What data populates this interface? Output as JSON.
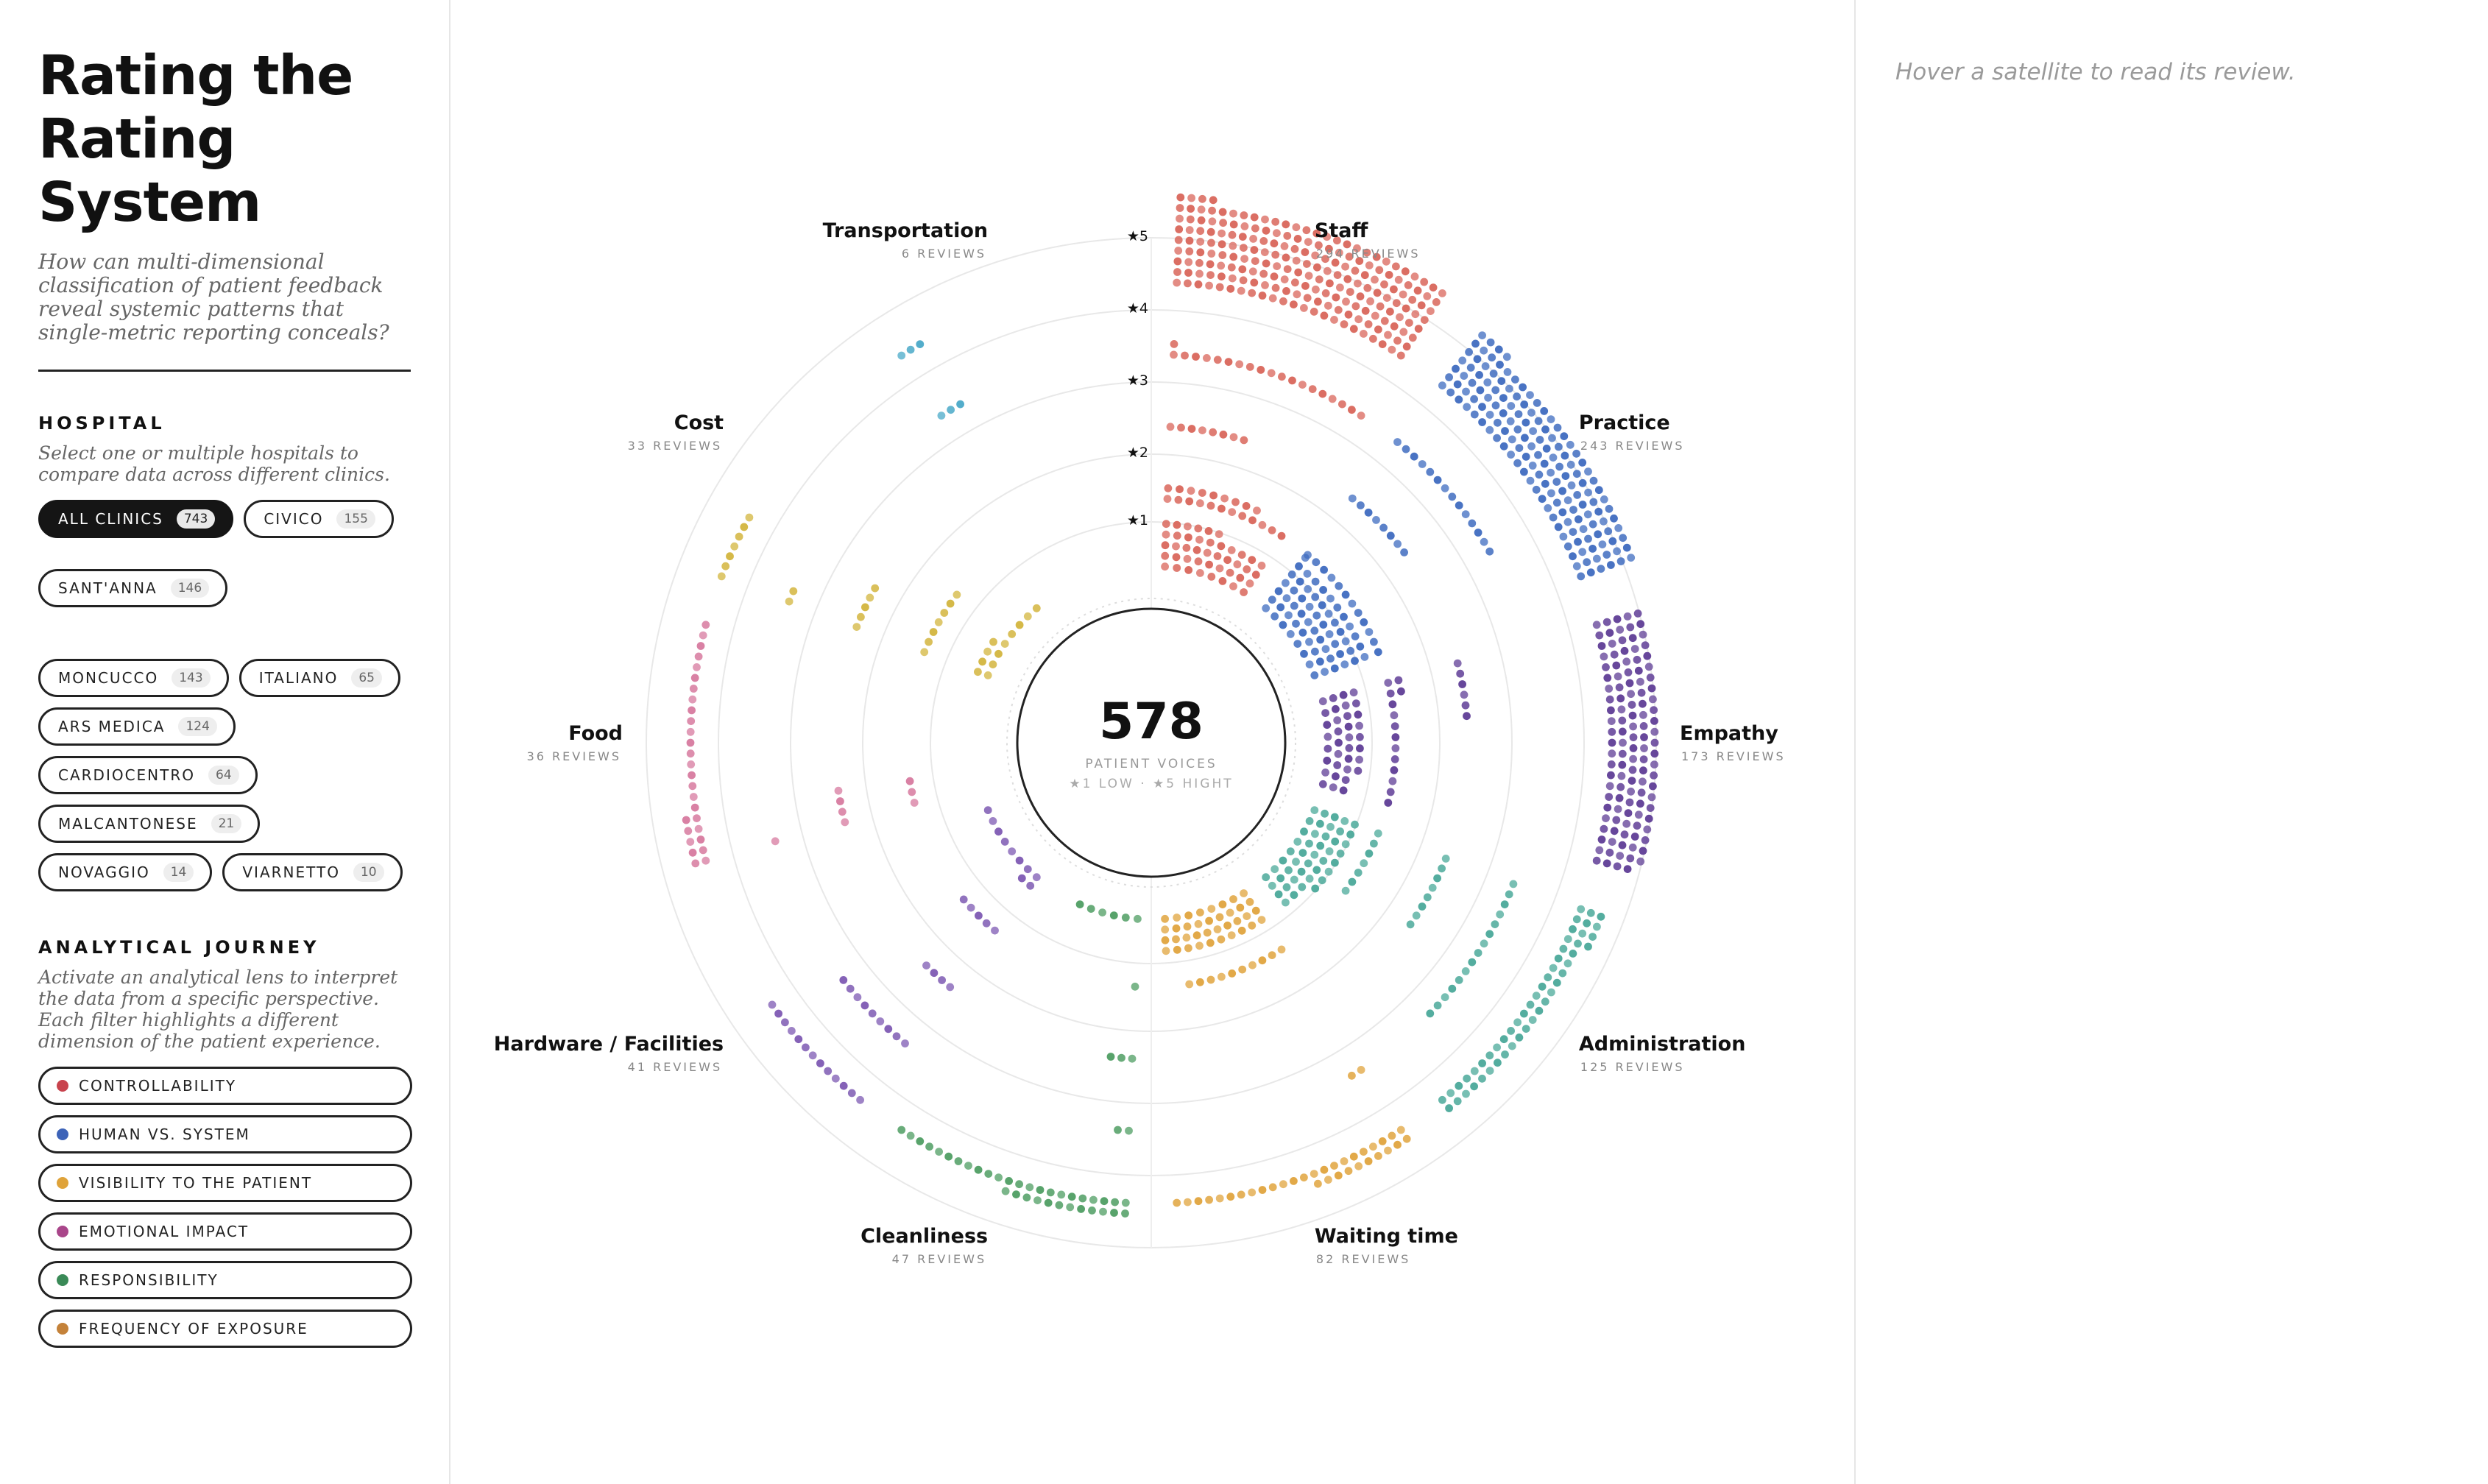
{
  "header": {
    "title_lines": [
      "Rating the",
      "Rating",
      "System"
    ],
    "subtitle": "How can multi-dimensional classification of patient feedback reveal systemic patterns that single-metric reporting conceals?"
  },
  "hospital": {
    "title": "HOSPITAL",
    "description": "Select one or multiple hospitals to compare data across different clinics.",
    "clinics": [
      {
        "name": "ALL CLINICS",
        "count": "743",
        "active": true
      },
      {
        "name": "CIVICO",
        "count": "155",
        "active": false
      },
      {
        "name": "SANT'ANNA",
        "count": "146",
        "active": false
      },
      {
        "name": "MONCUCCO",
        "count": "143",
        "active": false
      },
      {
        "name": "ITALIANO",
        "count": "65",
        "active": false
      },
      {
        "name": "ARS MEDICA",
        "count": "124",
        "active": false
      },
      {
        "name": "CARDIOCENTRO",
        "count": "64",
        "active": false
      },
      {
        "name": "MALCANTONESE",
        "count": "21",
        "active": false
      },
      {
        "name": "NOVAGGIO",
        "count": "14",
        "active": false
      },
      {
        "name": "VIARNETTO",
        "count": "10",
        "active": false
      }
    ]
  },
  "journey": {
    "title": "ANALYTICAL JOURNEY",
    "description": "Activate an analytical lens to interpret the data from a specific perspective. Each filter highlights a different dimension of the patient experience.",
    "lenses": [
      {
        "label": "CONTROLLABILITY",
        "color": "#c8434d"
      },
      {
        "label": "HUMAN VS. SYSTEM",
        "color": "#3d63b8"
      },
      {
        "label": "VISIBILITY TO THE PATIENT",
        "color": "#dfa33a"
      },
      {
        "label": "EMOTIONAL IMPACT",
        "color": "#a9468a"
      },
      {
        "label": "RESPONSIBILITY",
        "color": "#3a8a57"
      },
      {
        "label": "FREQUENCY OF EXPOSURE",
        "color": "#c4823a"
      }
    ]
  },
  "center": {
    "value": "578",
    "label": "PATIENT VOICES",
    "legend": "★1 LOW · ★5 HIGHT"
  },
  "ring_labels": [
    "★5",
    "★4",
    "★3",
    "★2",
    "★1"
  ],
  "right_panel": {
    "hint": "Hover a satellite to read its review."
  },
  "chart_data": {
    "type": "radial-dot",
    "rings": [
      "★1",
      "★2",
      "★3",
      "★4",
      "★5"
    ],
    "categories": [
      {
        "name": "Staff",
        "reviews": "294 REVIEWS",
        "color": "#d9665b",
        "ring_counts": [
          43,
          21,
          8,
          20,
          202
        ]
      },
      {
        "name": "Practice",
        "reviews": "243 REVIEWS",
        "color": "#3f6cc0",
        "ring_counts": [
          60,
          12,
          8,
          14,
          149
        ]
      },
      {
        "name": "Empathy",
        "reviews": "173 REVIEWS",
        "color": "#5f3d96",
        "ring_counts": [
          35,
          14,
          6,
          0,
          118
        ]
      },
      {
        "name": "Administration",
        "reviews": "125 REVIEWS",
        "color": "#4ba99a",
        "ring_counts": [
          45,
          7,
          8,
          15,
          50
        ]
      },
      {
        "name": "Waiting time",
        "reviews": "82 REVIEWS",
        "color": "#e0a43e",
        "ring_counts": [
          37,
          10,
          0,
          2,
          33
        ]
      },
      {
        "name": "Cleanliness",
        "reviews": "47 REVIEWS",
        "color": "#4f9e63",
        "ring_counts": [
          6,
          1,
          3,
          2,
          35
        ]
      },
      {
        "name": "Hardware / Facilities",
        "reviews": "41 REVIEWS",
        "color": "#7e5ab3",
        "ring_counts": [
          10,
          5,
          4,
          9,
          13
        ]
      },
      {
        "name": "Food",
        "reviews": "36 REVIEWS",
        "color": "#d77a9f",
        "ring_counts": [
          0,
          3,
          4,
          1,
          28
        ]
      },
      {
        "name": "Cost",
        "reviews": "33 REVIEWS",
        "color": "#d3b53e",
        "ring_counts": [
          12,
          7,
          5,
          2,
          7
        ]
      },
      {
        "name": "Transportation",
        "reviews": "6 REVIEWS",
        "color": "#4aa9c8",
        "ring_counts": [
          0,
          0,
          0,
          3,
          3
        ]
      }
    ]
  }
}
